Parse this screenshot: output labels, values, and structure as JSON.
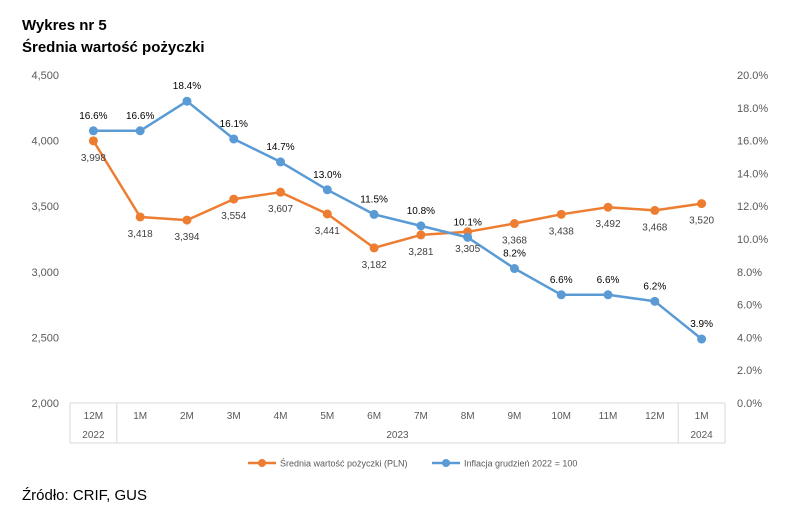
{
  "page": {
    "title": "Wykres nr 5",
    "subtitle": "Średnia wartość pożyczki",
    "source": "Źródło: CRIF, GUS"
  },
  "chart_data": {
    "type": "line",
    "categories": [
      "12M",
      "1M",
      "2M",
      "3M",
      "4M",
      "5M",
      "6M",
      "7M",
      "8M",
      "9M",
      "10M",
      "11M",
      "12M",
      "1M"
    ],
    "year_groups": [
      {
        "label": "2022",
        "from": 0,
        "to": 0
      },
      {
        "label": "2023",
        "from": 1,
        "to": 12
      },
      {
        "label": "2024",
        "from": 13,
        "to": 13
      }
    ],
    "y_left": {
      "min": 2000,
      "max": 4500,
      "step": 500,
      "ticks": [
        "2,000",
        "2,500",
        "3,000",
        "3,500",
        "4,000",
        "4,500"
      ]
    },
    "y_right": {
      "min": 0,
      "max": 20,
      "step": 2,
      "ticks": [
        "0.0%",
        "2.0%",
        "4.0%",
        "6.0%",
        "8.0%",
        "10.0%",
        "12.0%",
        "14.0%",
        "16.0%",
        "18.0%",
        "20.0%"
      ]
    },
    "series": [
      {
        "name": "Średnia wartość pożyczki (PLN)",
        "axis": "left",
        "color": "#ED7D31",
        "values": [
          3998,
          3418,
          3394,
          3554,
          3607,
          3441,
          3182,
          3281,
          3305,
          3368,
          3438,
          3492,
          3468,
          3520
        ],
        "labels": [
          "3,998",
          "3,418",
          "3,394",
          "3,554",
          "3,607",
          "3,441",
          "3,182",
          "3,281",
          "3,305",
          "3,368",
          "3,438",
          "3,492",
          "3,468",
          "3,520"
        ]
      },
      {
        "name": "Inflacja grudzień 2022 = 100",
        "axis": "right",
        "color": "#5B9BD5",
        "values": [
          16.6,
          16.6,
          18.4,
          16.1,
          14.7,
          13.0,
          11.5,
          10.8,
          10.1,
          8.2,
          6.6,
          6.6,
          6.2,
          3.9
        ],
        "labels": [
          "16.6%",
          "16.6%",
          "18.4%",
          "16.1%",
          "14.7%",
          "13.0%",
          "11.5%",
          "10.8%",
          "10.1%",
          "8.2%",
          "6.6%",
          "6.6%",
          "6.2%",
          "3.9%"
        ]
      }
    ],
    "legend_position": "bottom",
    "grid": false
  }
}
